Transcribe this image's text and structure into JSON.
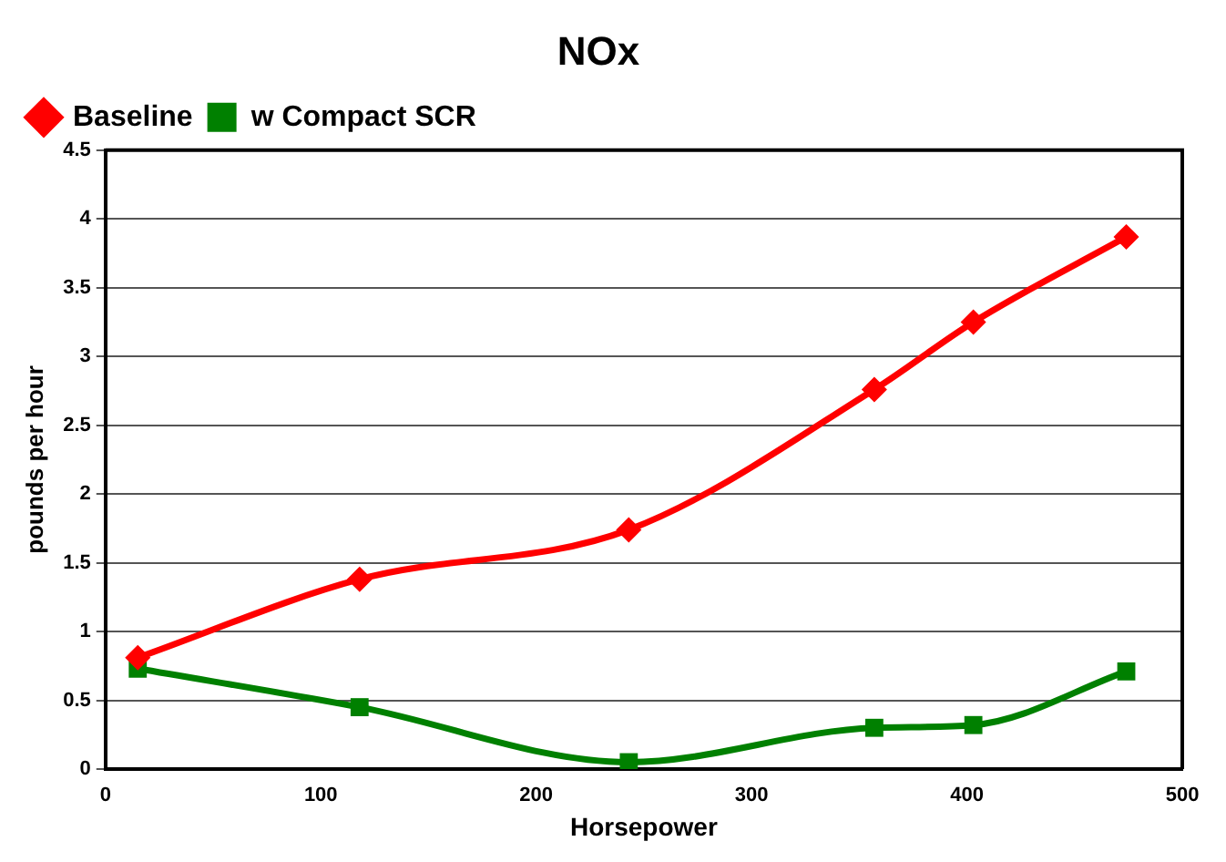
{
  "chart_data": {
    "type": "line",
    "title": "NOx",
    "xlabel": "Horsepower",
    "ylabel": "pounds per hour",
    "xlim": [
      0,
      500
    ],
    "xticks": [
      0,
      100,
      200,
      300,
      400,
      500
    ],
    "ylim": [
      0,
      4.5
    ],
    "yticks": [
      0,
      0.5,
      1,
      1.5,
      2,
      2.5,
      3,
      3.5,
      4,
      4.5
    ],
    "grid": "y",
    "legend": "top left",
    "series": [
      {
        "name": "Baseline",
        "color": "#ff0000",
        "marker": "diamond",
        "x": [
          15,
          118,
          243,
          357,
          403,
          474
        ],
        "values": [
          0.81,
          1.38,
          1.74,
          2.76,
          3.25,
          3.87
        ]
      },
      {
        "name": "w Compact SCR",
        "color": "#008000",
        "marker": "square",
        "x": [
          15,
          118,
          243,
          357,
          403,
          474
        ],
        "values": [
          0.73,
          0.45,
          0.05,
          0.3,
          0.32,
          0.71
        ]
      }
    ]
  }
}
